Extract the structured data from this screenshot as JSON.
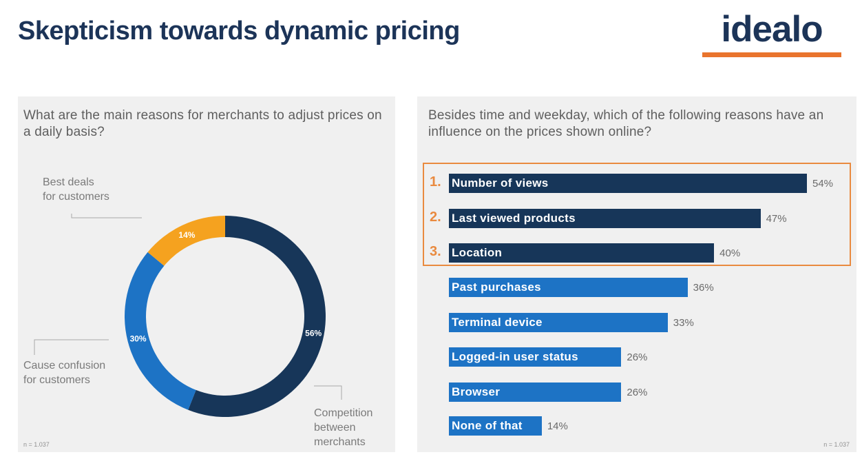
{
  "title": "Skepticism towards dynamic pricing",
  "logo": {
    "text": "idealo",
    "bar_color": "#e9742d",
    "text_color": "#1c3458"
  },
  "colors": {
    "dark_navy": "#173659",
    "blue": "#1d73c5",
    "orange": "#f5a21f",
    "accent_orange": "#e98a3f"
  },
  "chart_data": [
    {
      "type": "pie",
      "style": "donut",
      "title": "What are the main reasons for merchants to adjust prices on a daily basis?",
      "slices": [
        {
          "label": "Competition between merchants",
          "value": 56,
          "display": "56%",
          "color": "#173659",
          "callout": [
            "Competition",
            "between",
            "merchants"
          ]
        },
        {
          "label": "Cause confusion for customers",
          "value": 30,
          "display": "30%",
          "color": "#1d73c5",
          "callout": [
            "Cause confusion",
            "for customers"
          ]
        },
        {
          "label": "Best deals for customers",
          "value": 14,
          "display": "14%",
          "color": "#f5a21f",
          "callout": [
            "Best deals",
            "for customers"
          ]
        }
      ],
      "note": "n = 1.037"
    },
    {
      "type": "bar",
      "orientation": "horizontal",
      "title": "Besides time and weekday, which of the following reasons have an influence on the prices shown online?",
      "categories": [
        "Number of views",
        "Last viewed products",
        "Location",
        "Past purchases",
        "Terminal device",
        "Logged-in user status",
        "Browser",
        "None of that"
      ],
      "values": [
        54,
        47,
        40,
        36,
        33,
        26,
        26,
        14
      ],
      "value_labels": [
        "54%",
        "47%",
        "40%",
        "36%",
        "33%",
        "26%",
        "26%",
        "14%"
      ],
      "ranks": [
        "1.",
        "2.",
        "3.",
        "",
        "",
        "",
        "",
        ""
      ],
      "highlight_top": 3,
      "note": "n = 1.037"
    }
  ]
}
